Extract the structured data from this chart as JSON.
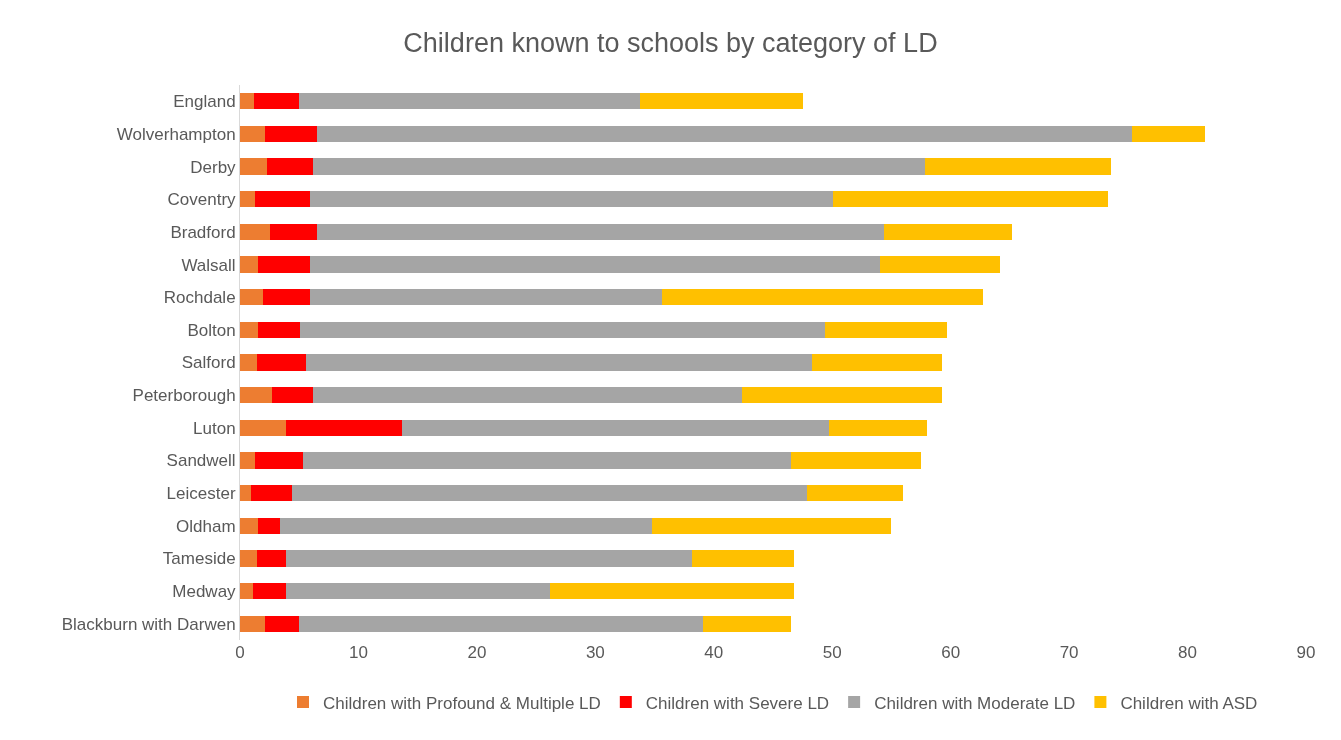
{
  "chart_data": {
    "type": "bar",
    "orientation": "horizontal",
    "stacked": true,
    "title": "Children known to schools by category of LD",
    "categories": [
      "England",
      "Wolverhampton",
      "Derby",
      "Coventry",
      "Bradford",
      "Walsall",
      "Rochdale",
      "Bolton",
      "Salford",
      "Peterborough",
      "Luton",
      "Sandwell",
      "Leicester",
      "Oldham",
      "Tameside",
      "Medway",
      "Blackburn with Darwen"
    ],
    "series": [
      {
        "name": "Children with Profound & Multiple LD",
        "color": "#ed7d31",
        "values": [
          1.2,
          2.1,
          2.3,
          1.3,
          2.5,
          1.5,
          1.9,
          1.5,
          1.4,
          2.7,
          3.9,
          1.3,
          0.9,
          1.5,
          1.4,
          1.1,
          2.1
        ]
      },
      {
        "name": "Children with Severe LD",
        "color": "#ff0000",
        "values": [
          3.8,
          4.4,
          3.9,
          4.6,
          4.0,
          4.4,
          4.0,
          3.6,
          4.2,
          3.5,
          9.8,
          4.0,
          3.5,
          1.9,
          2.5,
          2.8,
          2.9
        ]
      },
      {
        "name": "Children with Moderate LD",
        "color": "#a5a5a5",
        "values": [
          28.8,
          68.8,
          51.6,
          44.2,
          47.9,
          48.1,
          29.7,
          44.3,
          42.7,
          36.2,
          36.0,
          41.2,
          43.5,
          31.4,
          34.3,
          22.3,
          34.1
        ]
      },
      {
        "name": "Children with ASD",
        "color": "#ffc000",
        "values": [
          13.7,
          6.2,
          15.7,
          23.2,
          10.8,
          10.2,
          27.1,
          10.3,
          11.0,
          16.9,
          8.3,
          11.0,
          8.1,
          20.2,
          8.6,
          20.6,
          7.4
        ]
      }
    ],
    "xlim": [
      0,
      90
    ],
    "xticks": [
      0,
      10,
      20,
      30,
      40,
      50,
      60,
      70,
      80,
      90
    ],
    "grid": false,
    "legend": "bottom"
  }
}
